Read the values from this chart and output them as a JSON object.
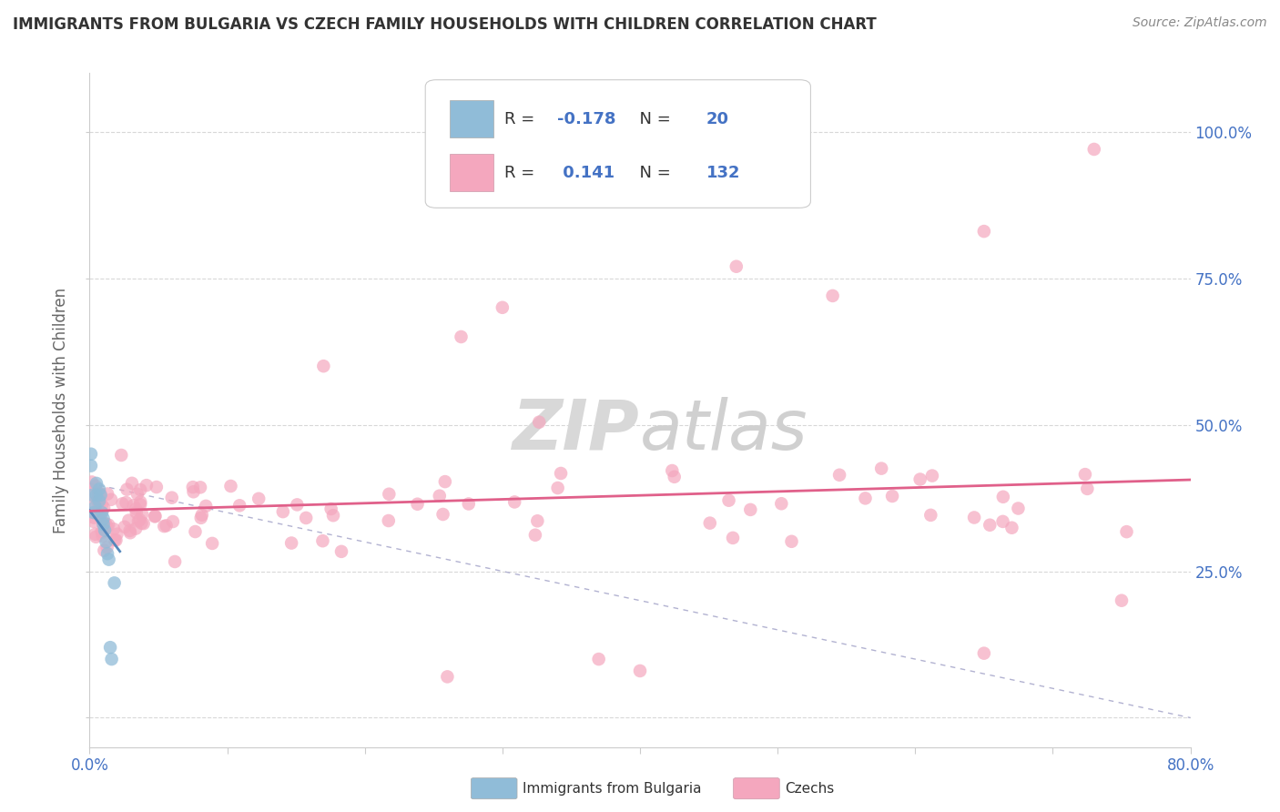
{
  "title": "IMMIGRANTS FROM BULGARIA VS CZECH FAMILY HOUSEHOLDS WITH CHILDREN CORRELATION CHART",
  "source": "Source: ZipAtlas.com",
  "ylabel": "Family Households with Children",
  "legend_label1": "Immigrants from Bulgaria",
  "legend_label2": "Czechs",
  "R1": -0.178,
  "N1": 20,
  "R2": 0.141,
  "N2": 132,
  "xlim": [
    0.0,
    0.8
  ],
  "ylim": [
    -0.05,
    1.1
  ],
  "xtick_vals": [
    0.0,
    0.1,
    0.2,
    0.3,
    0.4,
    0.5,
    0.6,
    0.7,
    0.8
  ],
  "ytick_vals": [
    0.0,
    0.25,
    0.5,
    0.75,
    1.0
  ],
  "xticklabels": [
    "0.0%",
    "",
    "",
    "",
    "",
    "",
    "",
    "",
    "80.0%"
  ],
  "yticklabels_right": [
    "",
    "25.0%",
    "50.0%",
    "75.0%",
    "100.0%"
  ],
  "color_blue": "#90bcd8",
  "color_pink": "#f4a7be",
  "color_trend_blue": "#5588bb",
  "color_trend_pink": "#e0608a",
  "color_dashed": "#aaaacc",
  "watermark_zip_color": "#d8d8d8",
  "watermark_atlas_color": "#d0d0d0",
  "tick_label_color": "#4472c4",
  "grid_color": "#c8c8c8",
  "title_color": "#333333",
  "source_color": "#888888",
  "axis_label_color": "#666666",
  "legend_box_edge": "#cccccc",
  "legend_R_color": "#4472c4",
  "bg_color": "#ffffff"
}
